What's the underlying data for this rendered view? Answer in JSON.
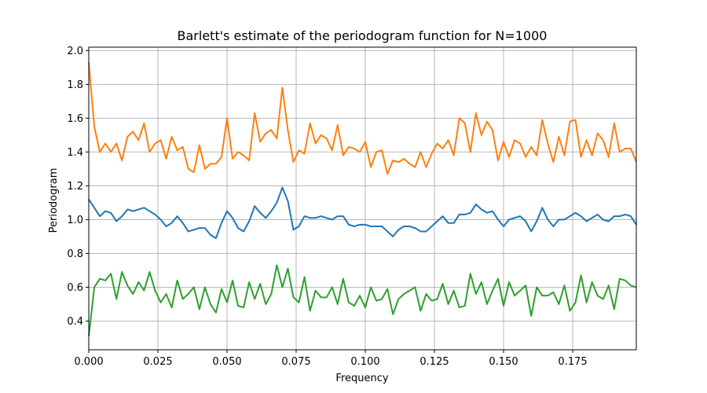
{
  "chart_data": {
    "type": "line",
    "title": "Barlett's estimate of the periodogram function for N=1000",
    "xlabel": "Frequency",
    "ylabel": "Periodogram",
    "xlim": [
      0,
      0.198
    ],
    "ylim": [
      0.23,
      2.02
    ],
    "grid": true,
    "x_ticks": [
      0.0,
      0.025,
      0.05,
      0.075,
      0.1,
      0.125,
      0.15,
      0.175
    ],
    "x_tick_labels": [
      "0.000",
      "0.025",
      "0.050",
      "0.075",
      "0.100",
      "0.125",
      "0.150",
      "0.175"
    ],
    "y_ticks": [
      0.4,
      0.6,
      0.8,
      1.0,
      1.2,
      1.4,
      1.6,
      1.8,
      2.0
    ],
    "y_tick_labels": [
      "0.4",
      "0.6",
      "0.8",
      "1.0",
      "1.2",
      "1.4",
      "1.6",
      "1.8",
      "2.0"
    ],
    "x_start": 0.0,
    "x_step": 0.002,
    "series": [
      {
        "color": "#1f77b4",
        "values": [
          1.12,
          1.07,
          1.02,
          1.05,
          1.04,
          0.99,
          1.02,
          1.06,
          1.05,
          1.06,
          1.07,
          1.05,
          1.03,
          1.0,
          0.96,
          0.98,
          1.02,
          0.98,
          0.93,
          0.94,
          0.95,
          0.95,
          0.91,
          0.89,
          0.98,
          1.05,
          1.01,
          0.95,
          0.93,
          0.99,
          1.08,
          1.04,
          1.01,
          1.05,
          1.1,
          1.19,
          1.11,
          0.94,
          0.96,
          1.02,
          1.01,
          1.01,
          1.02,
          1.01,
          1.0,
          1.02,
          1.02,
          0.97,
          0.96,
          0.97,
          0.97,
          0.96,
          0.96,
          0.96,
          0.93,
          0.9,
          0.94,
          0.96,
          0.96,
          0.95,
          0.93,
          0.93,
          0.96,
          0.99,
          1.02,
          0.98,
          0.98,
          1.03,
          1.03,
          1.04,
          1.09,
          1.06,
          1.04,
          1.05,
          1.0,
          0.96,
          1.0,
          1.01,
          1.02,
          0.99,
          0.93,
          0.99,
          1.07,
          1.0,
          0.96,
          1.0,
          1.0,
          1.02,
          1.04,
          1.02,
          0.99,
          1.01,
          1.03,
          1.0,
          0.99,
          1.02,
          1.02,
          1.03,
          1.02,
          0.97
        ]
      },
      {
        "color": "#ff7f0e",
        "values": [
          1.93,
          1.55,
          1.4,
          1.45,
          1.4,
          1.45,
          1.35,
          1.49,
          1.52,
          1.47,
          1.57,
          1.4,
          1.45,
          1.47,
          1.36,
          1.49,
          1.41,
          1.43,
          1.3,
          1.28,
          1.44,
          1.3,
          1.33,
          1.33,
          1.37,
          1.6,
          1.36,
          1.4,
          1.38,
          1.35,
          1.63,
          1.46,
          1.51,
          1.53,
          1.48,
          1.78,
          1.53,
          1.34,
          1.41,
          1.39,
          1.57,
          1.45,
          1.5,
          1.48,
          1.41,
          1.56,
          1.38,
          1.43,
          1.42,
          1.4,
          1.46,
          1.31,
          1.4,
          1.41,
          1.27,
          1.35,
          1.34,
          1.36,
          1.33,
          1.31,
          1.4,
          1.31,
          1.39,
          1.45,
          1.42,
          1.47,
          1.38,
          1.6,
          1.57,
          1.4,
          1.63,
          1.5,
          1.58,
          1.53,
          1.35,
          1.46,
          1.37,
          1.47,
          1.45,
          1.37,
          1.43,
          1.38,
          1.59,
          1.45,
          1.34,
          1.49,
          1.38,
          1.58,
          1.59,
          1.37,
          1.47,
          1.38,
          1.51,
          1.47,
          1.37,
          1.57,
          1.4,
          1.42,
          1.42,
          1.34
        ]
      },
      {
        "color": "#2ca02c",
        "values": [
          0.31,
          0.6,
          0.65,
          0.64,
          0.68,
          0.53,
          0.69,
          0.61,
          0.56,
          0.63,
          0.58,
          0.69,
          0.58,
          0.51,
          0.56,
          0.48,
          0.64,
          0.53,
          0.56,
          0.6,
          0.47,
          0.6,
          0.5,
          0.45,
          0.59,
          0.51,
          0.64,
          0.49,
          0.48,
          0.63,
          0.53,
          0.62,
          0.5,
          0.56,
          0.73,
          0.6,
          0.71,
          0.54,
          0.51,
          0.66,
          0.46,
          0.58,
          0.54,
          0.54,
          0.6,
          0.5,
          0.65,
          0.51,
          0.49,
          0.55,
          0.48,
          0.6,
          0.52,
          0.53,
          0.59,
          0.44,
          0.53,
          0.56,
          0.58,
          0.6,
          0.46,
          0.56,
          0.52,
          0.53,
          0.62,
          0.5,
          0.58,
          0.48,
          0.49,
          0.68,
          0.56,
          0.63,
          0.5,
          0.58,
          0.65,
          0.49,
          0.63,
          0.55,
          0.58,
          0.61,
          0.43,
          0.6,
          0.55,
          0.55,
          0.57,
          0.5,
          0.61,
          0.46,
          0.51,
          0.67,
          0.51,
          0.63,
          0.55,
          0.53,
          0.61,
          0.47,
          0.65,
          0.64,
          0.61,
          0.6
        ]
      }
    ]
  }
}
